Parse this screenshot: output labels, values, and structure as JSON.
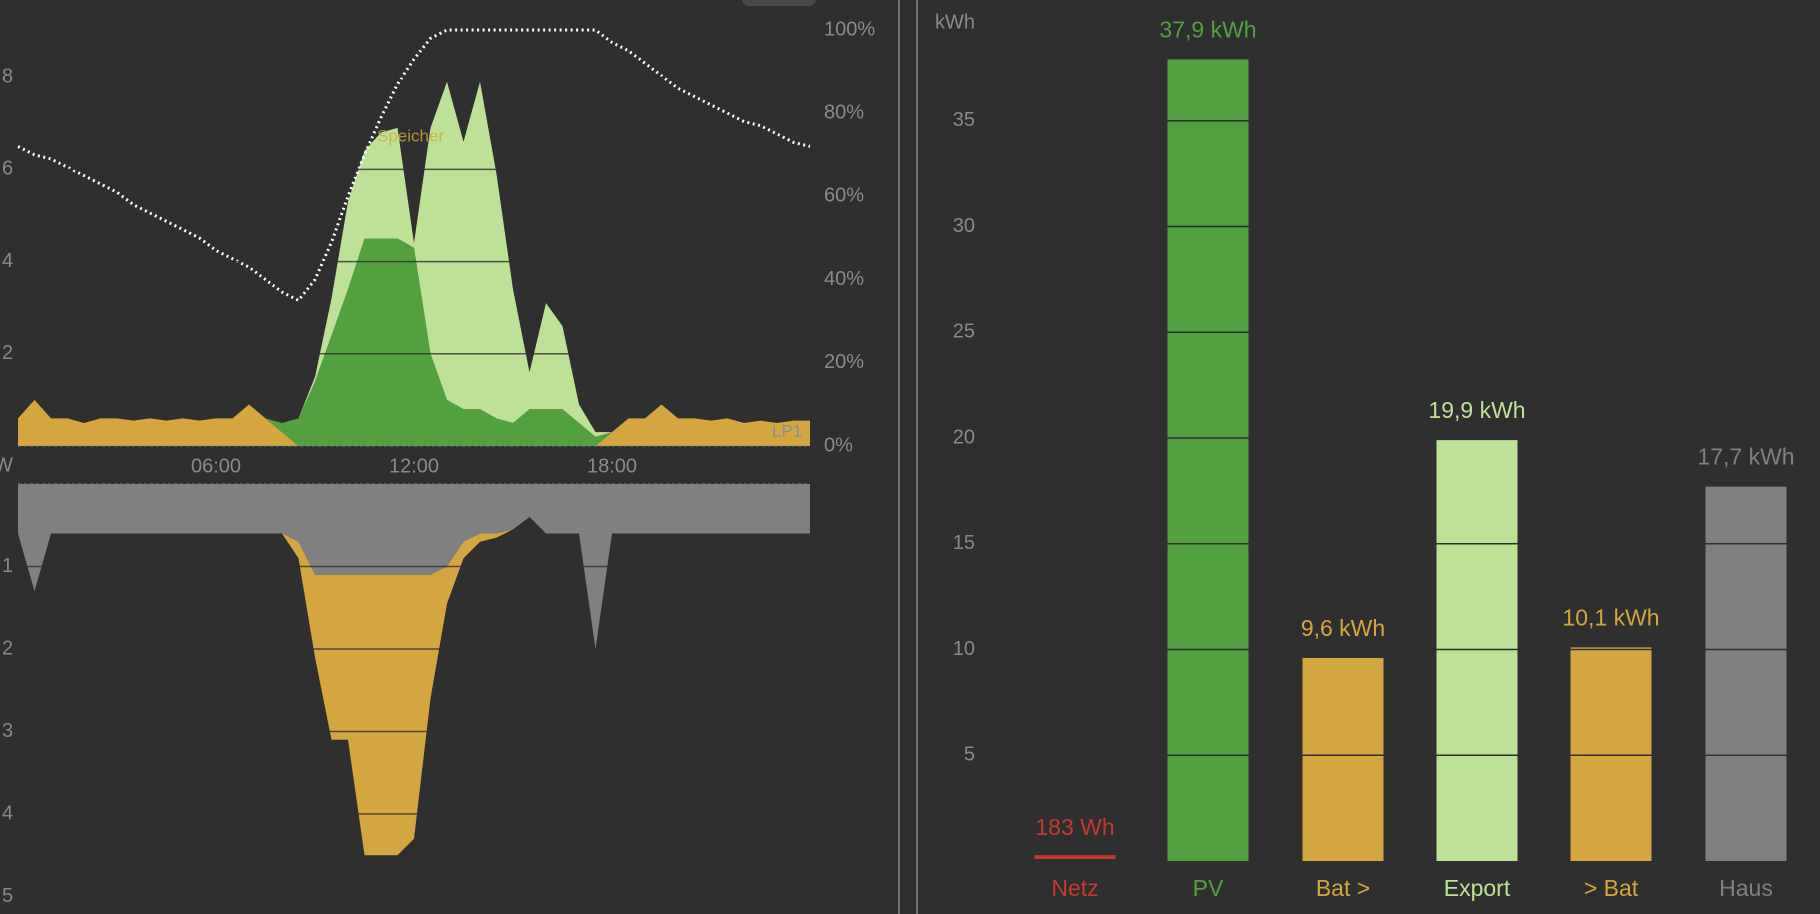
{
  "chart_data": [
    {
      "type": "area",
      "x": [
        0,
        0.5,
        1,
        1.5,
        2,
        2.5,
        3,
        3.5,
        4,
        4.5,
        5,
        5.5,
        6,
        6.5,
        7,
        7.5,
        8,
        8.5,
        9,
        9.5,
        10,
        10.5,
        11,
        11.5,
        12,
        12.5,
        13,
        13.5,
        14,
        14.5,
        15,
        15.5,
        16,
        16.5,
        17,
        17.5,
        18,
        18.5,
        19,
        19.5,
        20,
        20.5,
        21,
        21.5,
        22,
        22.5,
        23,
        23.5,
        24
      ],
      "xlim": [
        0,
        24
      ],
      "xticks": [
        {
          "value": 6,
          "label": "06:00"
        },
        {
          "value": 12,
          "label": "12:00"
        },
        {
          "value": 18,
          "label": "18:00"
        }
      ],
      "ylim": [
        0,
        9.5
      ],
      "yticks": [
        2,
        4,
        6,
        8
      ],
      "y2lim": [
        0,
        100
      ],
      "y2ticks": [
        {
          "value": 0,
          "label": "0%"
        },
        {
          "value": 20,
          "label": "20%"
        },
        {
          "value": 40,
          "label": "40%"
        },
        {
          "value": 60,
          "label": "60%"
        },
        {
          "value": 80,
          "label": "80%"
        },
        {
          "value": 100,
          "label": "100%"
        }
      ],
      "stacked": true,
      "annotations": [
        "Speicher",
        "LP1"
      ],
      "series": [
        {
          "color": "#d4a63f",
          "values": [
            0.6,
            1.0,
            0.6,
            0.6,
            0.5,
            0.6,
            0.6,
            0.55,
            0.6,
            0.55,
            0.6,
            0.55,
            0.6,
            0.6,
            0.9,
            0.6,
            0.3,
            0,
            0,
            0,
            0,
            0,
            0,
            0,
            0,
            0,
            0,
            0,
            0,
            0,
            0,
            0,
            0,
            0,
            0,
            0,
            0.3,
            0.6,
            0.6,
            0.9,
            0.6,
            0.6,
            0.55,
            0.6,
            0.5,
            0.55,
            0.5,
            0.55,
            0.55
          ]
        },
        {
          "color": "#52a03f",
          "values": [
            0,
            0,
            0,
            0,
            0,
            0,
            0,
            0,
            0,
            0,
            0,
            0,
            0,
            0,
            0,
            0,
            0.2,
            0.6,
            1.4,
            2.4,
            3.4,
            4.5,
            4.5,
            4.5,
            4.3,
            2.0,
            1.0,
            0.8,
            0.8,
            0.6,
            0.5,
            0.8,
            0.8,
            0.8,
            0.5,
            0.2,
            0,
            0,
            0,
            0,
            0,
            0,
            0,
            0,
            0,
            0,
            0,
            0,
            0
          ]
        },
        {
          "color": "#bde196",
          "values": [
            0,
            0,
            0,
            0,
            0,
            0,
            0,
            0,
            0,
            0,
            0,
            0,
            0,
            0,
            0,
            0,
            0,
            0,
            0.1,
            0.8,
            1.9,
            1.9,
            2.3,
            2.4,
            0.1,
            4.9,
            6.9,
            5.8,
            7.1,
            5.3,
            2.9,
            0.8,
            2.3,
            1.8,
            0.4,
            0.1,
            0,
            0,
            0,
            0,
            0,
            0,
            0,
            0,
            0,
            0,
            0,
            0,
            0
          ]
        },
        {
          "color": "#ffffff",
          "axis": "y2",
          "line_style": "dotted",
          "values": [
            72,
            70,
            69,
            67,
            65,
            63,
            61,
            58,
            56,
            54,
            52,
            50,
            47,
            45,
            43,
            40,
            37,
            35,
            40,
            49,
            60,
            70,
            79,
            87,
            93,
            98,
            100,
            100,
            100,
            100,
            100,
            100,
            100,
            100,
            100,
            100,
            97,
            95,
            92,
            89,
            86,
            84,
            82,
            80,
            78,
            77,
            75,
            73,
            72
          ]
        }
      ]
    },
    {
      "type": "area",
      "x": [
        0,
        0.5,
        1,
        1.5,
        2,
        2.5,
        3,
        3.5,
        4,
        4.5,
        5,
        5.5,
        6,
        6.5,
        7,
        7.5,
        8,
        8.5,
        9,
        9.5,
        10,
        10.5,
        11,
        11.5,
        12,
        12.5,
        13,
        13.5,
        14,
        14.5,
        15,
        15.5,
        16,
        16.5,
        17,
        17.5,
        18,
        18.5,
        19,
        19.5,
        20,
        20.5,
        21,
        21.5,
        22,
        22.5,
        23,
        23.5,
        24
      ],
      "xlim": [
        0,
        24
      ],
      "ylabel": "W",
      "ylim": [
        0,
        5.2
      ],
      "yticks": [
        1,
        2,
        3,
        4,
        5
      ],
      "y_inverted": true,
      "stacked": true,
      "series": [
        {
          "color": "#808080",
          "values": [
            0.6,
            1.3,
            0.6,
            0.6,
            0.6,
            0.6,
            0.6,
            0.6,
            0.6,
            0.6,
            0.6,
            0.6,
            0.6,
            0.6,
            0.6,
            0.6,
            0.6,
            0.7,
            1.1,
            1.1,
            1.1,
            1.1,
            1.1,
            1.1,
            1.1,
            1.1,
            1.0,
            0.7,
            0.6,
            0.6,
            0.55,
            0.4,
            0.6,
            0.6,
            0.6,
            2.0,
            0.6,
            0.6,
            0.6,
            0.6,
            0.6,
            0.6,
            0.6,
            0.6,
            0.6,
            0.6,
            0.6,
            0.6,
            0.6
          ]
        },
        {
          "color": "#d4a63f",
          "values": [
            0,
            0,
            0,
            0,
            0,
            0,
            0,
            0,
            0,
            0,
            0,
            0,
            0,
            0,
            0,
            0,
            0,
            0.2,
            1.0,
            2.0,
            2.0,
            3.4,
            3.4,
            3.4,
            3.2,
            1.5,
            0.45,
            0.2,
            0.1,
            0.05,
            0,
            0,
            0,
            0,
            0,
            0,
            0,
            0,
            0,
            0,
            0,
            0,
            0,
            0,
            0,
            0,
            0,
            0,
            0
          ]
        }
      ]
    },
    {
      "type": "bar",
      "ylabel": "kWh",
      "categories": [
        "Netz",
        "PV",
        "Bat >",
        "Export",
        "> Bat",
        "Haus"
      ],
      "values": [
        0.183,
        37.9,
        9.6,
        19.9,
        10.1,
        17.7
      ],
      "value_labels": [
        "183 Wh",
        "37,9 kWh",
        "9,6 kWh",
        "19,9 kWh",
        "10,1 kWh",
        "17,7 kWh"
      ],
      "colors": [
        "#c43a33",
        "#52a03f",
        "#d4a63f",
        "#bde196",
        "#d4a63f",
        "#808080"
      ],
      "ylim": [
        0,
        40
      ],
      "yticks": [
        5,
        10,
        15,
        20,
        25,
        30,
        35
      ],
      "grid": true
    }
  ]
}
